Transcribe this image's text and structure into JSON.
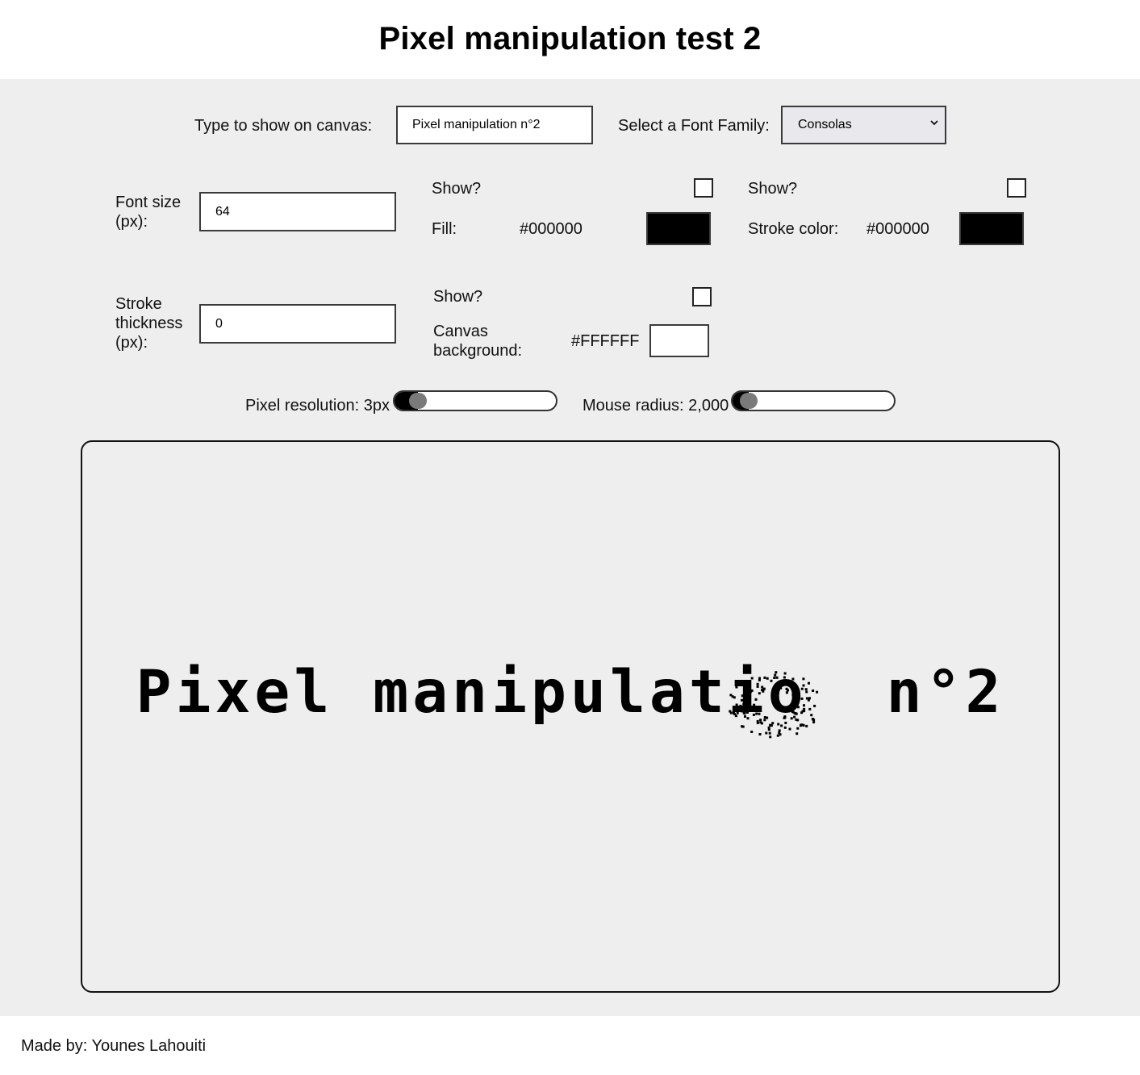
{
  "page": {
    "title": "Pixel manipulation test 2"
  },
  "controls": {
    "text_label": "Type to show on canvas:",
    "text_value": "Pixel manipulation n°2",
    "font_family_label": "Select a Font Family:",
    "font_family_value": "Consolas",
    "font_size_label": "Font size (px):",
    "font_size_value": "64",
    "stroke_thickness_label": "Stroke thickness (px):",
    "stroke_thickness_value": "0",
    "fill": {
      "show_label": "Show?",
      "label": "Fill:",
      "hex": "#000000",
      "color": "#000000",
      "checked": false
    },
    "stroke": {
      "show_label": "Show?",
      "label": "Stroke color:",
      "hex": "#000000",
      "color": "#000000",
      "checked": false
    },
    "background": {
      "show_label": "Show?",
      "label": "Canvas background:",
      "hex": "#FFFFFF",
      "color": "#FFFFFF",
      "checked": false
    },
    "pixel_resolution": {
      "label": "Pixel resolution: 3px",
      "fraction": 0.1
    },
    "mouse_radius": {
      "label": "Mouse radius: 2,000",
      "fraction": 0.05
    }
  },
  "canvas": {
    "text": "Pixel manipulatio  n°2"
  },
  "footer": {
    "text": "Made by: Younes Lahouiti"
  }
}
